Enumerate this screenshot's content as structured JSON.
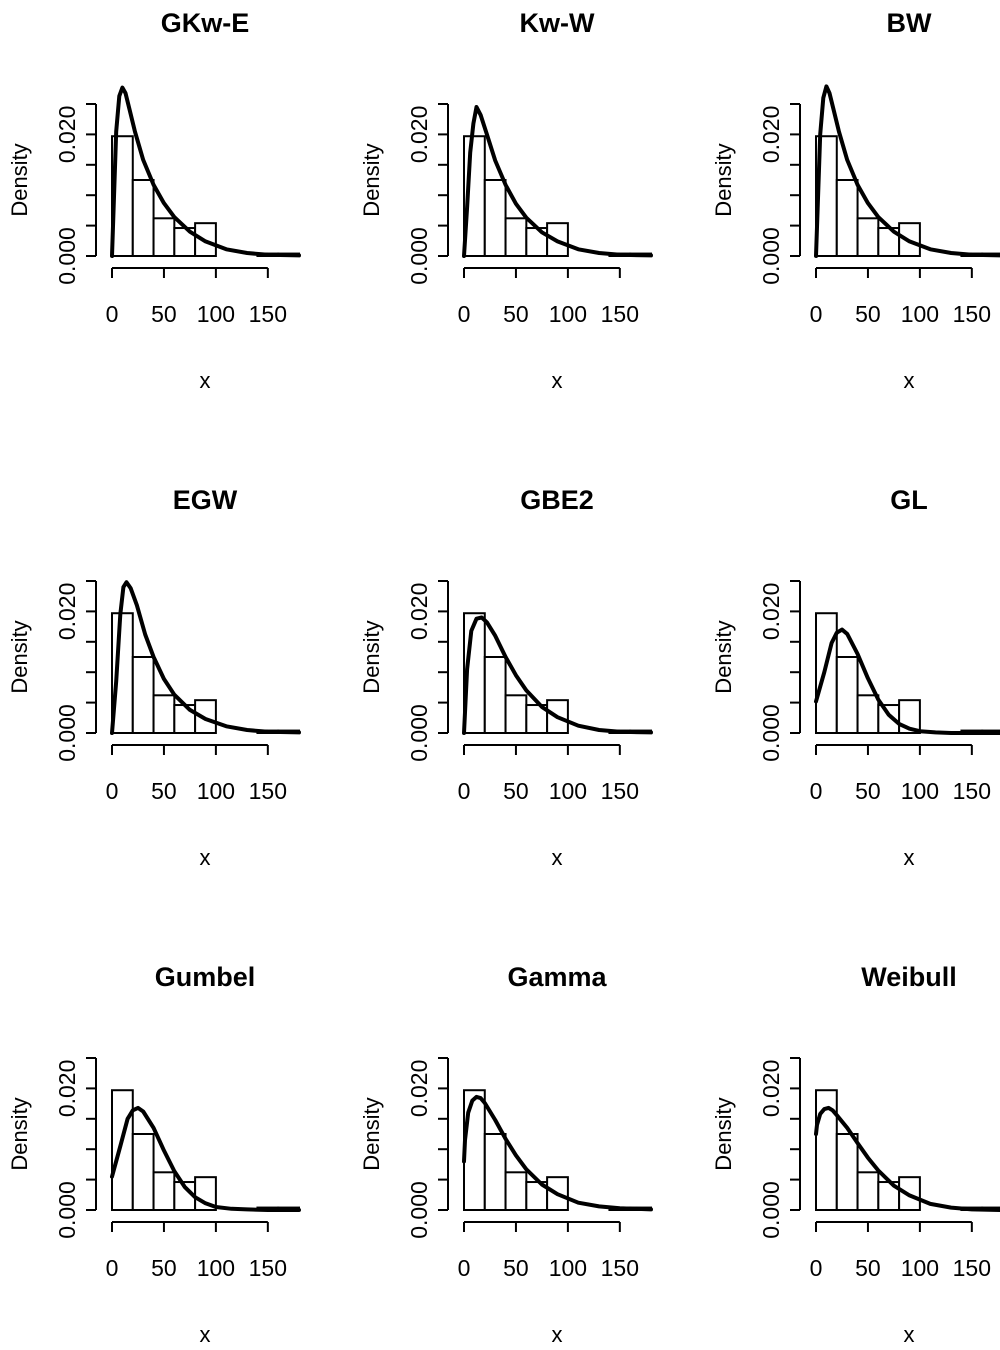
{
  "chart_data": {
    "type": "histogram-density-grid",
    "layout": {
      "rows": 3,
      "cols": 3
    },
    "shared": {
      "xlabel": "x",
      "ylabel": "Density",
      "xlim": [
        0,
        180
      ],
      "ylim": [
        0,
        0.025
      ],
      "xticks": [
        0,
        50,
        100,
        150
      ],
      "xtick_labels": [
        "0",
        "50",
        "100",
        "150"
      ],
      "yticks": [
        0,
        0.005,
        0.01,
        0.015,
        0.02,
        0.025
      ],
      "ytick_labels": [
        "0.000",
        "",
        "",
        "",
        "0.020",
        ""
      ],
      "bin_edges": [
        0,
        20,
        40,
        60,
        80,
        100,
        120,
        140,
        160,
        180
      ],
      "histogram_density": [
        0.0197,
        0.0125,
        0.0062,
        0.0046,
        0.0054,
        0.0,
        0.0,
        0.0004,
        0.0004
      ]
    },
    "panels": [
      {
        "title": "GKw-E",
        "curve_x": [
          0,
          4,
          7,
          10,
          13,
          17,
          22,
          30,
          40,
          50,
          60,
          75,
          90,
          110,
          130,
          150,
          180
        ],
        "curve_y": [
          0,
          0.0205,
          0.0263,
          0.0277,
          0.0268,
          0.024,
          0.0205,
          0.0158,
          0.0117,
          0.0087,
          0.0064,
          0.004,
          0.0024,
          0.0011,
          0.0005,
          0.0002,
          0.0001
        ]
      },
      {
        "title": "Kw-W",
        "curve_x": [
          0,
          3,
          6,
          9,
          12,
          16,
          22,
          30,
          40,
          50,
          60,
          75,
          90,
          110,
          130,
          150,
          180
        ],
        "curve_y": [
          0,
          0.008,
          0.017,
          0.0218,
          0.0245,
          0.0232,
          0.02,
          0.0157,
          0.0117,
          0.0086,
          0.0063,
          0.0039,
          0.0024,
          0.0011,
          0.0005,
          0.0002,
          0.0001
        ]
      },
      {
        "title": "BW",
        "curve_x": [
          0,
          4,
          7,
          10,
          13,
          17,
          22,
          30,
          40,
          50,
          60,
          75,
          90,
          110,
          130,
          150,
          180
        ],
        "curve_y": [
          0,
          0.02,
          0.026,
          0.0279,
          0.0268,
          0.024,
          0.0205,
          0.0158,
          0.0117,
          0.0087,
          0.0064,
          0.004,
          0.0024,
          0.0011,
          0.0005,
          0.0002,
          0.0001
        ]
      },
      {
        "title": "EGW",
        "curve_x": [
          0,
          4,
          8,
          11,
          14,
          18,
          24,
          32,
          40,
          50,
          60,
          75,
          90,
          110,
          130,
          150,
          180
        ],
        "curve_y": [
          0,
          0.0085,
          0.0195,
          0.024,
          0.0248,
          0.0238,
          0.021,
          0.0162,
          0.0125,
          0.0089,
          0.0063,
          0.0038,
          0.0023,
          0.0011,
          0.0005,
          0.0002,
          0.0001
        ]
      },
      {
        "title": "GBE2",
        "curve_x": [
          0,
          3,
          7,
          12,
          17,
          22,
          30,
          40,
          50,
          60,
          75,
          90,
          110,
          130,
          150,
          180
        ],
        "curve_y": [
          0,
          0.0105,
          0.0168,
          0.0188,
          0.019,
          0.0182,
          0.016,
          0.0125,
          0.0095,
          0.007,
          0.0043,
          0.0026,
          0.0012,
          0.0005,
          0.0002,
          0.0001
        ]
      },
      {
        "title": "GL",
        "curve_x": [
          0,
          8,
          15,
          20,
          25,
          30,
          40,
          50,
          60,
          70,
          80,
          90,
          100,
          115,
          130,
          150,
          180
        ],
        "curve_y": [
          0.0052,
          0.01,
          0.0148,
          0.0165,
          0.017,
          0.0163,
          0.013,
          0.009,
          0.0055,
          0.003,
          0.0015,
          0.0007,
          0.0003,
          0.0001,
          0.0,
          0.0,
          0.0
        ]
      },
      {
        "title": "Gumbel",
        "curve_x": [
          0,
          8,
          15,
          20,
          25,
          30,
          40,
          50,
          60,
          70,
          80,
          90,
          100,
          115,
          130,
          150,
          180
        ],
        "curve_y": [
          0.0055,
          0.0105,
          0.015,
          0.0164,
          0.0168,
          0.0162,
          0.0135,
          0.0098,
          0.0064,
          0.0038,
          0.0021,
          0.0011,
          0.0005,
          0.0002,
          0.0001,
          0.0,
          0.0
        ]
      },
      {
        "title": "Gamma",
        "curve_x": [
          0,
          1,
          4,
          8,
          12,
          16,
          20,
          30,
          40,
          50,
          60,
          75,
          90,
          110,
          130,
          150,
          180
        ],
        "curve_y": [
          0.008,
          0.0115,
          0.016,
          0.018,
          0.0186,
          0.0184,
          0.0176,
          0.0148,
          0.0117,
          0.009,
          0.0067,
          0.0042,
          0.0026,
          0.0012,
          0.0006,
          0.0003,
          0.0001
        ]
      },
      {
        "title": "Weibull",
        "curve_x": [
          0,
          1,
          4,
          8,
          12,
          16,
          20,
          30,
          40,
          50,
          60,
          75,
          90,
          110,
          130,
          150,
          180
        ],
        "curve_y": [
          0.0125,
          0.014,
          0.0158,
          0.0166,
          0.0168,
          0.0164,
          0.0156,
          0.0135,
          0.011,
          0.0086,
          0.0065,
          0.004,
          0.0024,
          0.001,
          0.0004,
          0.0001,
          0.0
        ]
      }
    ]
  }
}
